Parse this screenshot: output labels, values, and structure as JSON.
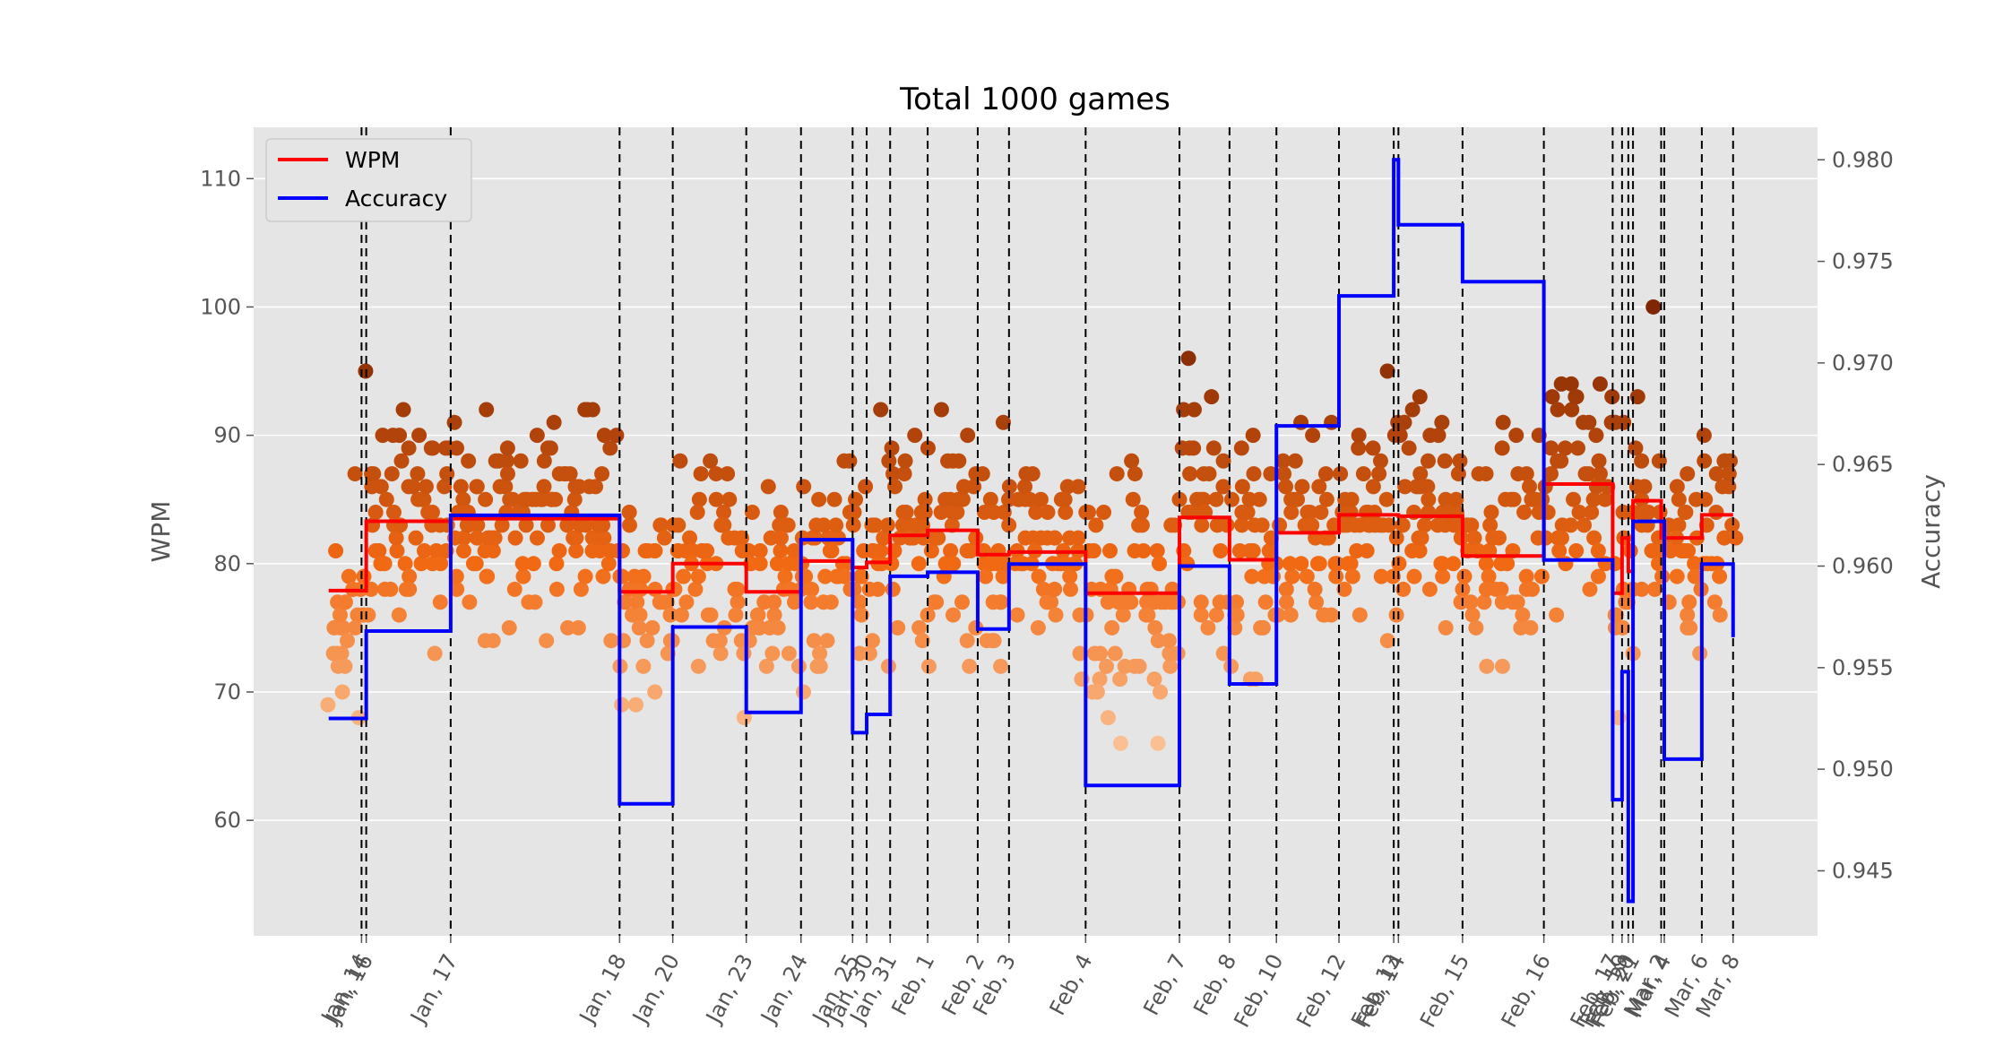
{
  "chart_data": {
    "type": "scatter",
    "title": "Total 1000 games",
    "ylabel": "WPM",
    "y2label": "Accuracy",
    "xlim": [
      0,
      100
    ],
    "ylim": [
      51,
      114
    ],
    "y2lim": [
      0.9418,
      0.9816
    ],
    "yticks": [
      60,
      70,
      80,
      90,
      100,
      110
    ],
    "y2ticks": [
      "0.945",
      "0.950",
      "0.955",
      "0.960",
      "0.965",
      "0.970",
      "0.975",
      "0.980"
    ],
    "grid": true,
    "legend_position": "top-left",
    "colors": {
      "wpm": "#ff0000",
      "accuracy": "#0000ff",
      "plot_bg": "#e5e5e5",
      "grid": "#ffffff",
      "date_line": "#000000",
      "scatter_low": "#fdd8b6",
      "scatter_high": "#7f2704"
    },
    "date_markers": [
      {
        "label": "Jan, 14",
        "x": 6.9
      },
      {
        "label": "Jan, 16",
        "x": 7.2
      },
      {
        "label": "Jan, 17",
        "x": 12.6
      },
      {
        "label": "Jan, 18",
        "x": 23.4
      },
      {
        "label": "Jan, 20",
        "x": 26.8
      },
      {
        "label": "Jan, 23",
        "x": 31.5
      },
      {
        "label": "Jan, 24",
        "x": 35.0
      },
      {
        "label": "Jan, 25",
        "x": 38.3
      },
      {
        "label": "Jan, 30",
        "x": 39.2
      },
      {
        "label": "Jan, 31",
        "x": 40.7
      },
      {
        "label": "Feb, 1",
        "x": 43.1
      },
      {
        "label": "Feb, 2",
        "x": 46.3
      },
      {
        "label": "Feb, 3",
        "x": 48.3
      },
      {
        "label": "Feb, 4",
        "x": 53.2
      },
      {
        "label": "Feb, 7",
        "x": 59.2
      },
      {
        "label": "Feb, 8",
        "x": 62.4
      },
      {
        "label": "Feb, 10",
        "x": 65.4
      },
      {
        "label": "Feb, 12",
        "x": 69.4
      },
      {
        "label": "Feb, 13",
        "x": 72.9
      },
      {
        "label": "Feb, 14",
        "x": 73.2
      },
      {
        "label": "Feb, 15",
        "x": 77.3
      },
      {
        "label": "Feb, 16",
        "x": 82.5
      },
      {
        "label": "Feb, 17",
        "x": 86.9
      },
      {
        "label": "Feb, 19",
        "x": 87.5
      },
      {
        "label": "Feb, 20",
        "x": 87.9
      },
      {
        "label": "Feb, 21",
        "x": 88.2
      },
      {
        "label": "Mar, 2",
        "x": 90.0
      },
      {
        "label": "Mar, 4",
        "x": 90.2
      },
      {
        "label": "Mar, 6",
        "x": 92.6
      },
      {
        "label": "Mar, 8",
        "x": 94.6
      }
    ],
    "series": [
      {
        "name": "WPM",
        "axis": "left",
        "x": [
          4.8,
          7.2,
          12.6,
          23.4,
          26.8,
          31.5,
          35.0,
          38.3,
          39.2,
          40.7,
          43.1,
          46.3,
          48.3,
          53.2,
          59.2,
          62.4,
          65.4,
          69.4,
          73.2,
          77.3,
          82.5,
          86.9,
          87.5,
          87.9,
          88.2,
          90.0,
          92.6,
          94.6
        ],
        "values": [
          77.9,
          83.3,
          83.5,
          77.8,
          80.0,
          77.8,
          80.2,
          79.7,
          80.1,
          82.2,
          82.6,
          80.7,
          80.9,
          77.7,
          83.6,
          80.3,
          82.4,
          83.8,
          83.7,
          80.6,
          86.2,
          77.7,
          82.0,
          79.4,
          84.9,
          82.0,
          83.8,
          83.8
        ]
      },
      {
        "name": "Accuracy",
        "axis": "right",
        "x": [
          4.8,
          7.2,
          12.6,
          23.4,
          26.8,
          31.5,
          35.0,
          38.3,
          39.2,
          40.7,
          43.1,
          46.3,
          48.3,
          53.2,
          59.2,
          62.4,
          65.4,
          69.4,
          72.9,
          73.2,
          77.3,
          82.5,
          86.9,
          87.5,
          87.9,
          88.2,
          90.0,
          90.2,
          92.6,
          94.6
        ],
        "values": [
          0.9525,
          0.9568,
          0.9625,
          0.9483,
          0.957,
          0.9528,
          0.9613,
          0.9518,
          0.9527,
          0.9595,
          0.9597,
          0.9569,
          0.9601,
          0.9492,
          0.96,
          0.9542,
          0.9669,
          0.9733,
          0.98,
          0.9768,
          0.974,
          0.9603,
          0.9485,
          0.9548,
          0.9435,
          0.9622,
          0.9622,
          0.9505,
          0.9601,
          0.9565
        ]
      }
    ]
  }
}
